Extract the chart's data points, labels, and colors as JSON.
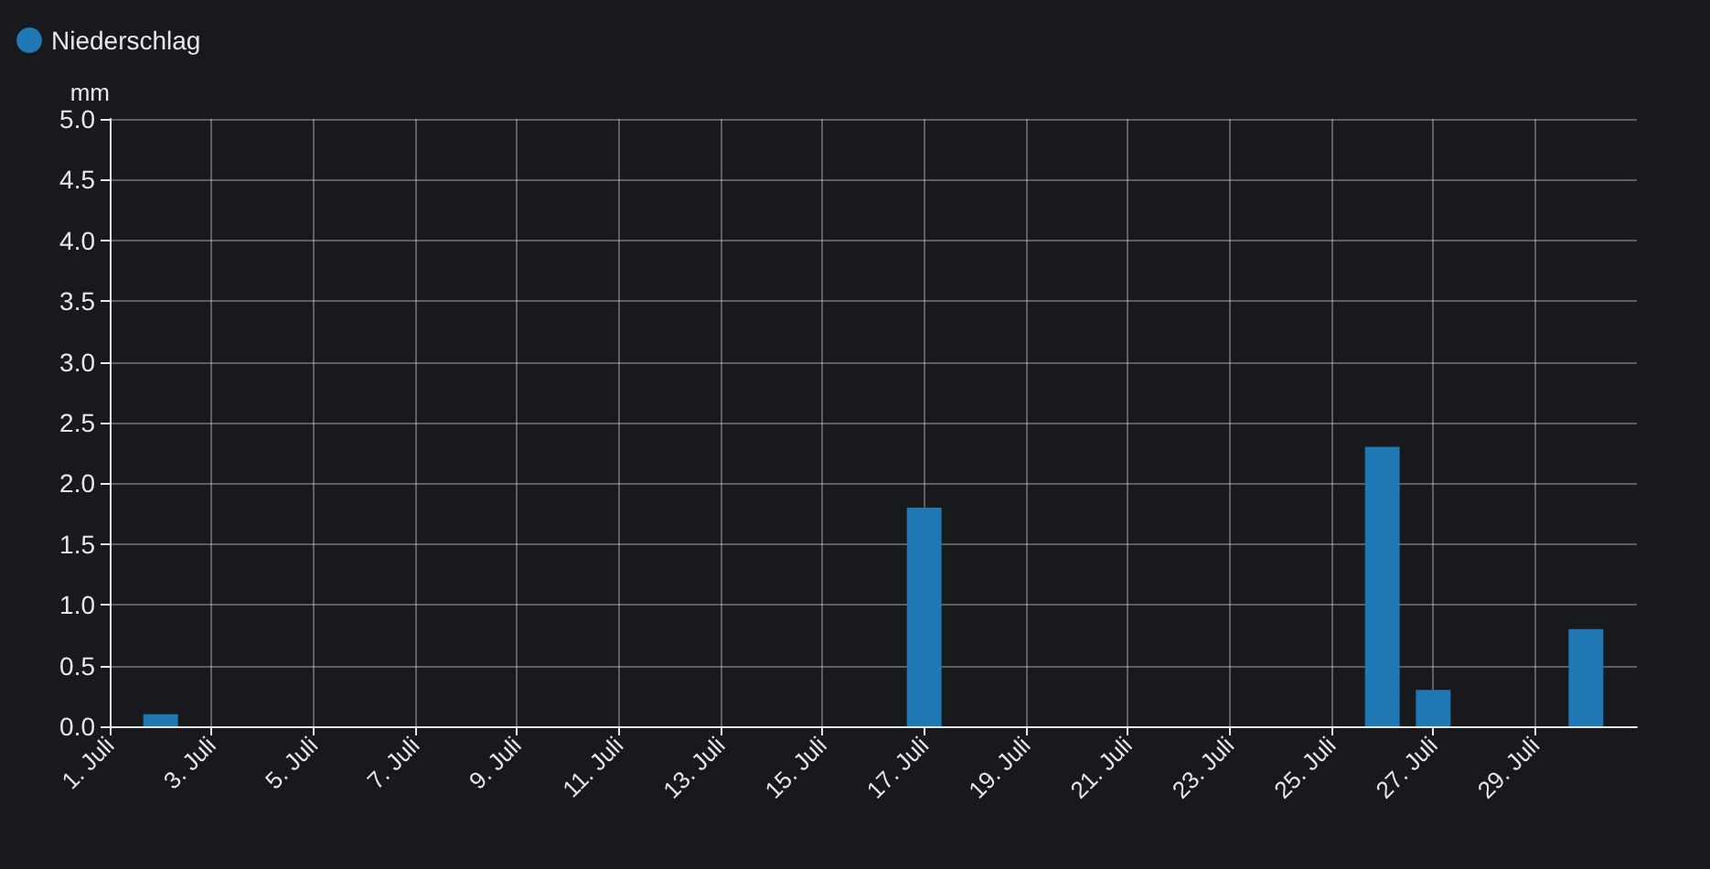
{
  "chart_data": {
    "type": "bar",
    "x": [
      "--07-02",
      "--07-17",
      "--07-26",
      "--07-27",
      "--07-30"
    ],
    "series": [
      {
        "name": "Niederschlag",
        "color": "#1f77b4",
        "values": [
          0.1,
          1.8,
          2.3,
          0.3,
          0.8
        ]
      }
    ],
    "ylabel": "mm",
    "xlim": [
      "--07-01",
      "--07-31"
    ],
    "xticks": [
      {
        "value": "--07-01",
        "label": "1. Juli"
      },
      {
        "value": "--07-03",
        "label": "3. Juli"
      },
      {
        "value": "--07-05",
        "label": "5. Juli"
      },
      {
        "value": "--07-07",
        "label": "7. Juli"
      },
      {
        "value": "--07-09",
        "label": "9. Juli"
      },
      {
        "value": "--07-11",
        "label": "11. Juli"
      },
      {
        "value": "--07-13",
        "label": "13. Juli"
      },
      {
        "value": "--07-15",
        "label": "15. Juli"
      },
      {
        "value": "--07-17",
        "label": "17. Juli"
      },
      {
        "value": "--07-19",
        "label": "19. Juli"
      },
      {
        "value": "--07-21",
        "label": "21. Juli"
      },
      {
        "value": "--07-23",
        "label": "23. Juli"
      },
      {
        "value": "--07-25",
        "label": "25. Juli"
      },
      {
        "value": "--07-27",
        "label": "27. Juli"
      },
      {
        "value": "--07-29",
        "label": "29. Juli"
      }
    ],
    "ylim": [
      0,
      5
    ],
    "yticks": [
      {
        "value": 0,
        "label": "0.0"
      },
      {
        "value": 0.5,
        "label": "0.5"
      },
      {
        "value": 1,
        "label": "1.0"
      },
      {
        "value": 1.5,
        "label": "1.5"
      },
      {
        "value": 2,
        "label": "2.0"
      },
      {
        "value": 2.5,
        "label": "2.5"
      },
      {
        "value": 3,
        "label": "3.0"
      },
      {
        "value": 3.5,
        "label": "3.5"
      },
      {
        "value": 4,
        "label": "4.0"
      },
      {
        "value": 4.5,
        "label": "4.5"
      },
      {
        "value": 5,
        "label": "5.0"
      }
    ],
    "grid": true,
    "legend": "top left"
  }
}
